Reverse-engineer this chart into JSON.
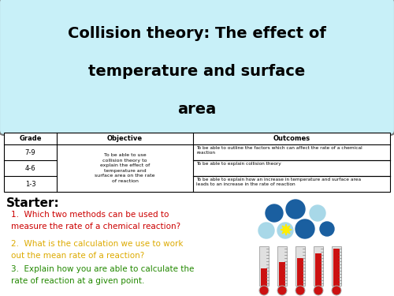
{
  "title_line1": "Collision theory: The effect of",
  "title_line2": "temperature and surface",
  "title_line3": "area",
  "title_bg": "#c8f0f8",
  "title_border": "#888888",
  "table_headers": [
    "Grade",
    "Objective",
    "Outcomes"
  ],
  "table_grades": [
    "7-9",
    "4-6",
    "1-3"
  ],
  "table_objective": "To be able to use\ncollision theory to\nexplain the effect of\ntemperature and\nsurface area on the rate\nof reaction",
  "table_outcomes_79_a": "To be able to outline the factors which can affect the rate of a chemical\nreaction",
  "table_outcomes_79_b": "To be able to explain collision theory",
  "table_outcomes_13": "To be able to explain how an increase in temperature and surface area\nleads to an increase in the rate of reaction",
  "starter_label": "Starter:",
  "q1": "Which two methods can be used to\nmeasure the rate of a chemical reaction?",
  "q2": "What is the calculation we use to work\nout the mean rate of a reaction?",
  "q3": "Explain how you are able to calculate the\nrate of reaction at a given point.",
  "q1_color": "#cc0000",
  "q2_color": "#ddaa00",
  "q3_color": "#228800",
  "bg_color": "#ffffff",
  "dark_blue": "#1a5fa0",
  "light_blue": "#a8d8e8",
  "thermometer_red": "#cc1111",
  "thermometer_gray": "#cccccc"
}
